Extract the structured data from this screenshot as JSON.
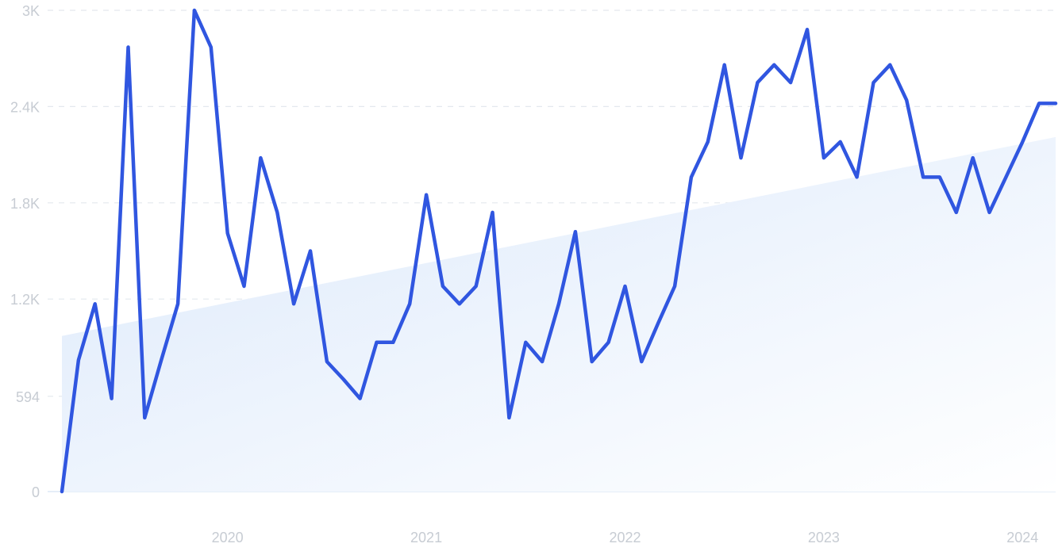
{
  "chart_data": {
    "type": "line",
    "title": "",
    "xlabel": "",
    "ylabel": "",
    "grid": true,
    "legend": "none",
    "y_ticks": [
      {
        "value": 0,
        "label": "0"
      },
      {
        "value": 594,
        "label": "594"
      },
      {
        "value": 1200,
        "label": "1.2K"
      },
      {
        "value": 1800,
        "label": "1.8K"
      },
      {
        "value": 2400,
        "label": "2.4K"
      },
      {
        "value": 3000,
        "label": "3K"
      }
    ],
    "x_ticks": [
      {
        "value": "2020-01",
        "label": "2020"
      },
      {
        "value": "2021-01",
        "label": "2021"
      },
      {
        "value": "2022-01",
        "label": "2022"
      },
      {
        "value": "2023-01",
        "label": "2023"
      },
      {
        "value": "2024-01",
        "label": "2024"
      }
    ],
    "xlim": [
      "2019-03",
      "2024-03"
    ],
    "ylim": [
      0,
      3000
    ],
    "colors": {
      "line": "#3056e0",
      "trend_fill_top": "#dce9fb",
      "trend_fill_bottom": "#ffffff",
      "grid": "#e3e8ee",
      "tick_text": "#c7ccd3"
    },
    "series": [
      {
        "x": [
          "2019-03",
          "2019-04",
          "2019-05",
          "2019-06",
          "2019-07",
          "2019-08",
          "2019-09",
          "2019-10",
          "2019-11",
          "2019-12",
          "2020-01",
          "2020-02",
          "2020-03",
          "2020-04",
          "2020-05",
          "2020-06",
          "2020-07",
          "2020-08",
          "2020-09",
          "2020-10",
          "2020-11",
          "2020-12",
          "2021-01",
          "2021-02",
          "2021-03",
          "2021-04",
          "2021-05",
          "2021-06",
          "2021-07",
          "2021-08",
          "2021-09",
          "2021-10",
          "2021-11",
          "2021-12",
          "2022-01",
          "2022-02",
          "2022-03",
          "2022-04",
          "2022-05",
          "2022-06",
          "2022-07",
          "2022-08",
          "2022-09",
          "2022-10",
          "2022-11",
          "2022-12",
          "2023-01",
          "2023-02",
          "2023-03",
          "2023-04",
          "2023-05",
          "2023-06",
          "2023-07",
          "2023-08",
          "2023-09",
          "2023-10",
          "2023-11",
          "2023-12",
          "2024-01",
          "2024-02",
          "2024-03"
        ],
        "values": [
          0,
          820,
          1170,
          580,
          2770,
          460,
          820,
          1170,
          3000,
          2770,
          1610,
          1280,
          2080,
          1740,
          1170,
          1500,
          810,
          700,
          580,
          930,
          930,
          1170,
          1850,
          1280,
          1170,
          1280,
          1740,
          460,
          930,
          810,
          1170,
          1620,
          810,
          930,
          1280,
          810,
          1050,
          1280,
          1960,
          2180,
          2660,
          2080,
          2550,
          2660,
          2550,
          2880,
          2080,
          2180,
          1960,
          2550,
          2660,
          2440,
          1960,
          1960,
          1740,
          2080,
          1740,
          1960,
          2180,
          2420,
          2420
        ]
      }
    ],
    "trend": {
      "start": {
        "x": "2019-03",
        "y": 970
      },
      "end": {
        "x": "2024-03",
        "y": 2210
      }
    }
  }
}
